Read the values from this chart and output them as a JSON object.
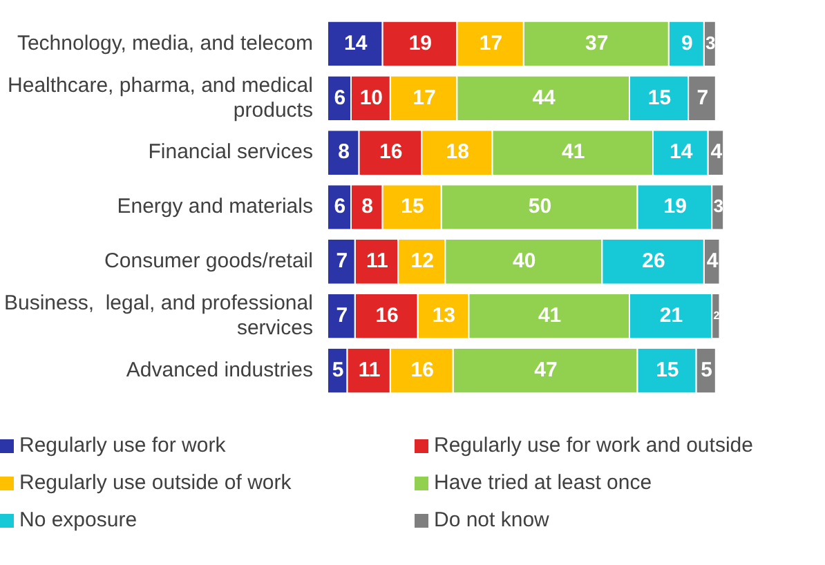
{
  "chart_data": {
    "type": "bar",
    "orientation": "horizontal",
    "stacked": true,
    "data_labels": true,
    "tick_labels": "y",
    "legend": "bottom",
    "categories": [
      "Technology, media, and telecom",
      "Healthcare, pharma, and medical products",
      "Financial services",
      "Energy and materials",
      "Consumer goods/retail",
      "Business,  legal, and professional services",
      "Advanced industries"
    ],
    "series": [
      {
        "name": "Regularly use for work",
        "color": "#2b35a8",
        "values": [
          14,
          6,
          8,
          6,
          7,
          7,
          5
        ]
      },
      {
        "name": "Regularly use for work and outside",
        "color": "#e02626",
        "values": [
          19,
          10,
          16,
          8,
          11,
          16,
          11
        ]
      },
      {
        "name": "Regularly use outside of work",
        "color": "#ffc000",
        "values": [
          17,
          17,
          18,
          15,
          12,
          13,
          16
        ]
      },
      {
        "name": "Have tried at least once",
        "color": "#92d050",
        "values": [
          37,
          44,
          41,
          50,
          40,
          41,
          47
        ]
      },
      {
        "name": "No exposure",
        "color": "#17c8d6",
        "values": [
          9,
          15,
          14,
          19,
          26,
          21,
          15
        ]
      },
      {
        "name": "Do not know",
        "color": "#7f7f7f",
        "values": [
          3,
          7,
          4,
          3,
          4,
          2,
          5
        ]
      }
    ]
  }
}
